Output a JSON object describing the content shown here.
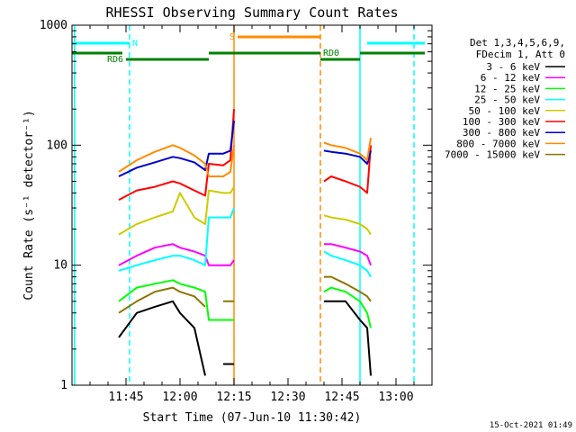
{
  "chart_data": {
    "type": "line",
    "title": "RHESSI Observing Summary Count Rates",
    "xlabel": "Start Time (07-Jun-10 11:30:42)",
    "ylabel": "Count Rate (s⁻¹ detector⁻¹)",
    "x_scale": "time",
    "x_range": [
      "11:30",
      "13:10"
    ],
    "x_ticks": [
      "11:45",
      "12:00",
      "12:15",
      "12:30",
      "12:45",
      "13:00"
    ],
    "y_scale": "log",
    "ylim": [
      1,
      1000
    ],
    "y_ticks": [
      "1",
      "10",
      "100",
      "1000"
    ],
    "legend": {
      "placement": "right",
      "header": [
        "Det 1,3,4,5,6,9,",
        "FDecim 1, Att 0"
      ],
      "entries": [
        {
          "label": "3 - 6 keV",
          "color": "#000000"
        },
        {
          "label": "6 - 12 keV",
          "color": "#ff00ff"
        },
        {
          "label": "12 - 25 keV",
          "color": "#00ff00"
        },
        {
          "label": "25 - 50 keV",
          "color": "#00ffff"
        },
        {
          "label": "50 - 100 keV",
          "color": "#cccc00"
        },
        {
          "label": "100 - 300 keV",
          "color": "#ff0000"
        },
        {
          "label": "300 - 800 keV",
          "color": "#0000cc"
        },
        {
          "label": "800 - 7000 keV",
          "color": "#ff8c00"
        },
        {
          "label": "7000 - 15000 keV",
          "color": "#8b7500"
        }
      ]
    },
    "flag_bars": [
      {
        "label": "N",
        "color": "#00ffff",
        "segments": [
          [
            "11:30",
            "11:46"
          ],
          [
            "12:52",
            "13:08"
          ]
        ]
      },
      {
        "label": "S",
        "color": "#ff8c00",
        "segments": [
          [
            "12:16",
            "12:39"
          ]
        ]
      },
      {
        "label": "RD0",
        "color": "#008000",
        "segments": [
          [
            "11:30",
            "11:44"
          ],
          [
            "12:08",
            "12:39"
          ],
          [
            "12:50",
            "13:08"
          ]
        ]
      },
      {
        "label": "RD6",
        "color": "#008000",
        "segments": [
          [
            "11:45",
            "12:08"
          ],
          [
            "12:39",
            "12:50"
          ]
        ]
      }
    ],
    "vlines": [
      {
        "time": "11:30:42",
        "color": "#00ffff",
        "style": "solid"
      },
      {
        "time": "11:46",
        "color": "#00ffff",
        "style": "dashed"
      },
      {
        "time": "12:15",
        "color": "#ff8c00",
        "style": "solid"
      },
      {
        "time": "12:39",
        "color": "#ff8c00",
        "style": "dashed"
      },
      {
        "time": "12:50",
        "color": "#00ffff",
        "style": "solid"
      },
      {
        "time": "13:05",
        "color": "#00ffff",
        "style": "dashed"
      }
    ],
    "x": [
      "11:43",
      "11:48",
      "11:53",
      "11:58",
      "12:00",
      "12:04",
      "12:07",
      "12:08",
      "12:12",
      "12:14",
      "12:15",
      "12:16",
      "12:40",
      "12:42",
      "12:46",
      "12:50",
      "12:52",
      "12:53"
    ],
    "series": [
      {
        "name": "3 - 6 keV",
        "values": [
          2.5,
          4,
          4.5,
          5,
          4,
          3,
          1.2,
          null,
          1.5,
          1.5,
          1.5,
          null,
          5,
          5,
          5,
          3.5,
          3,
          1.2
        ]
      },
      {
        "name": "6 - 12 keV",
        "values": [
          10,
          12,
          14,
          15,
          14,
          13,
          12,
          10,
          10,
          10,
          11,
          null,
          15,
          15,
          14,
          13,
          12,
          10
        ]
      },
      {
        "name": "12 - 25 keV",
        "values": [
          5,
          6.5,
          7,
          7.5,
          7,
          6.5,
          6,
          3.5,
          3.5,
          3.5,
          3.5,
          null,
          6,
          6.5,
          6,
          5,
          4,
          3
        ]
      },
      {
        "name": "25 - 50 keV",
        "values": [
          9,
          10,
          11,
          12,
          12,
          11,
          10,
          25,
          25,
          25,
          30,
          null,
          13,
          12,
          11,
          10,
          9,
          8
        ]
      },
      {
        "name": "50 - 100 keV",
        "values": [
          18,
          22,
          25,
          28,
          40,
          25,
          22,
          42,
          40,
          40,
          45,
          null,
          26,
          25,
          24,
          22,
          20,
          18
        ]
      },
      {
        "name": "100 - 300 keV",
        "values": [
          35,
          42,
          45,
          50,
          48,
          42,
          38,
          70,
          68,
          75,
          200,
          null,
          50,
          55,
          50,
          45,
          40,
          100
        ]
      },
      {
        "name": "300 - 800 keV",
        "values": [
          55,
          65,
          72,
          80,
          78,
          72,
          62,
          85,
          85,
          90,
          160,
          null,
          90,
          88,
          85,
          80,
          70,
          90
        ]
      },
      {
        "name": "800 - 7000 keV",
        "values": [
          60,
          75,
          88,
          100,
          95,
          82,
          70,
          55,
          55,
          60,
          100,
          null,
          105,
          100,
          95,
          85,
          75,
          115
        ]
      },
      {
        "name": "7000 - 15000 keV",
        "values": [
          4,
          5,
          6,
          6.5,
          6,
          5.5,
          4.5,
          null,
          5,
          5,
          5,
          null,
          8,
          8,
          7,
          6,
          5.5,
          5
        ]
      }
    ],
    "timestamp": "15-Oct-2021 01:49"
  }
}
